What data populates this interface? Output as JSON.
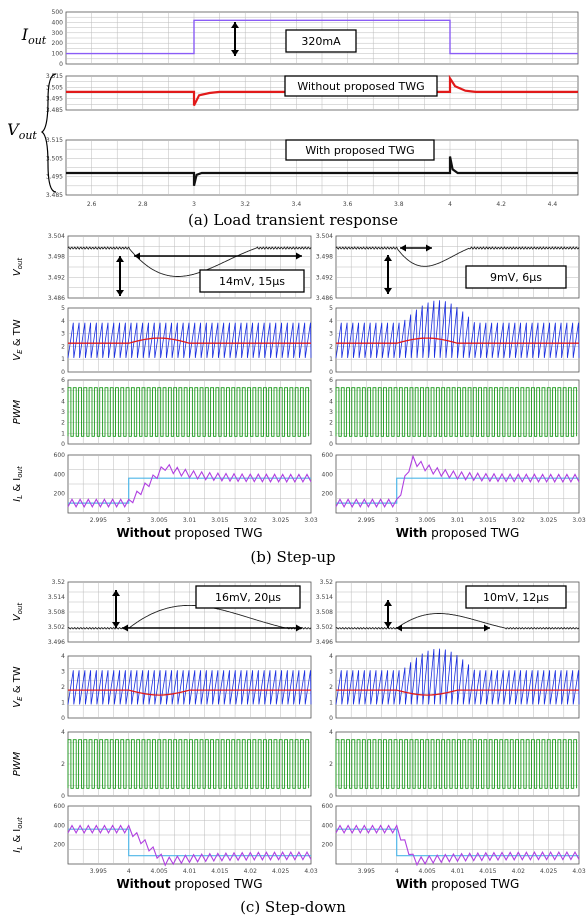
{
  "chart_data": [
    {
      "id": "a",
      "type": "line",
      "caption": "(a) Load transient response",
      "xlim": [
        2.5,
        4.5
      ],
      "xticks": [
        "2.6",
        "2.8",
        "3",
        "3.2",
        "3.4",
        "3.6",
        "3.8",
        "4",
        "4.2",
        "4.4"
      ],
      "panels": [
        {
          "ylabel": "I",
          "ylabel_sub": "out",
          "ylim": [
            0,
            500
          ],
          "yticks": [
            "500",
            "400",
            "300",
            "200",
            "100",
            "0"
          ],
          "series": [
            {
              "color": "#8a5cf6",
              "x": [
                2.5,
                3.0,
                3.0,
                4.0,
                4.0,
                4.5
              ],
              "y": [
                100,
                100,
                420,
                420,
                100,
                100
              ]
            }
          ]
        },
        {
          "ylabel": "",
          "ylim": [
            3.485,
            3.515
          ],
          "yticks": [
            "3.515",
            "3.505",
            "3.495",
            "3.485"
          ],
          "series": [
            {
              "color": "#e11a1a",
              "x": [
                2.5,
                2.998,
                3.0,
                3.0,
                3.02,
                3.06,
                3.1,
                3.999,
                4.0,
                4.0,
                4.02,
                4.06,
                4.1,
                4.5
              ],
              "y": [
                3.501,
                3.501,
                3.501,
                3.489,
                3.498,
                3.5,
                3.501,
                3.501,
                3.501,
                3.513,
                3.506,
                3.502,
                3.501,
                3.501
              ]
            }
          ]
        },
        {
          "ylabel": "",
          "ylim": [
            3.485,
            3.515
          ],
          "yticks": [
            "3.515",
            "3.505",
            "3.495",
            "3.485"
          ],
          "series": [
            {
              "color": "#111111",
              "x": [
                2.5,
                2.998,
                3.0,
                3.0,
                3.01,
                3.03,
                3.999,
                4.0,
                4.0,
                4.01,
                4.03,
                4.5
              ],
              "y": [
                3.497,
                3.497,
                3.497,
                3.49,
                3.496,
                3.497,
                3.497,
                3.497,
                3.506,
                3.499,
                3.497,
                3.497
              ]
            }
          ]
        }
      ],
      "group_label": "V",
      "group_label_sub": "out",
      "annotations": [
        "320mA",
        "Without proposed TWG",
        "With proposed TWG"
      ]
    },
    {
      "id": "b",
      "type": "line",
      "caption": "(b) Step-up",
      "columns": [
        {
          "xlabel_bold": "Without",
          "xlabel_rest": " proposed TWG",
          "note": "14mV, 15μs",
          "xlim": [
            2.99,
            3.03
          ],
          "xticks": [
            "2.995",
            "3",
            "3.005",
            "3.01",
            "3.015",
            "3.02",
            "3.025",
            "3.03"
          ],
          "vout": {
            "ylim": [
              3.486,
              3.504
            ],
            "yticks": [
              "3.504",
              "3.498",
              "3.492",
              "3.486"
            ],
            "dip_min": 3.4865,
            "dip_start": 3.0,
            "dip_recover": 3.015
          },
          "il": {
            "ylim": [
              0,
              700
            ],
            "yticks": [
              "600",
              "400",
              "200"
            ],
            "steady_low": 120,
            "steady_high": 420,
            "overshoot": 560
          }
        },
        {
          "xlabel_bold": "With",
          "xlabel_rest": " proposed TWG",
          "note": "9mV, 6μs",
          "xlim": [
            2.99,
            3.03
          ],
          "xticks": [
            "2.995",
            "3",
            "3.005",
            "3.01",
            "3.015",
            "3.02",
            "3.025",
            "3.03"
          ],
          "vout": {
            "ylim": [
              3.486,
              3.504
            ],
            "yticks": [
              "3.504",
              "3.498",
              "3.492",
              "3.486"
            ],
            "dip_min": 3.4915,
            "dip_start": 3.0,
            "dip_recover": 3.006
          },
          "il": {
            "ylim": [
              0,
              700
            ],
            "yticks": [
              "600",
              "400",
              "200"
            ],
            "steady_low": 120,
            "steady_high": 420,
            "overshoot": 650
          }
        }
      ],
      "row_labels": [
        {
          "main": "V",
          "sub": "out",
          "rest": ""
        },
        {
          "main": "V",
          "sub": "E",
          "rest": " & TW"
        },
        {
          "main": "PWM",
          "sub": "",
          "rest": ""
        },
        {
          "main": "I",
          "sub": "L",
          "rest": " & I",
          "sub2": "out"
        }
      ],
      "ve_yticks": [
        "5",
        "4",
        "3",
        "2",
        "1",
        "0"
      ],
      "pwm_yticks": [
        "6",
        "5",
        "4",
        "3",
        "2",
        "1",
        "0"
      ]
    },
    {
      "id": "c",
      "type": "line",
      "caption": "(c) Step-down",
      "columns": [
        {
          "xlabel_bold": "Without",
          "xlabel_rest": " proposed TWG",
          "note": "16mV, 20μs",
          "xlim": [
            3.99,
            4.03
          ],
          "xticks": [
            "3.995",
            "4",
            "4.005",
            "4.01",
            "4.015",
            "4.02",
            "4.025",
            "4.03"
          ],
          "vout": {
            "ylim": [
              3.496,
              3.52
            ],
            "yticks": [
              "3.52",
              "3.514",
              "3.508",
              "3.502",
              "3.496"
            ],
            "peak": 3.517,
            "dip_start": 4.0,
            "dip_recover": 4.02
          },
          "il": {
            "ylim": [
              0,
              700
            ],
            "yticks": [
              "600",
              "400",
              "200"
            ],
            "steady_low": 100,
            "steady_high": 420
          }
        },
        {
          "xlabel_bold": "With",
          "xlabel_rest": " proposed TWG",
          "note": "10mV, 12μs",
          "xlim": [
            3.99,
            4.03
          ],
          "xticks": [
            "3.995",
            "4",
            "4.005",
            "4.01",
            "4.015",
            "4.02",
            "4.025",
            "4.03"
          ],
          "vout": {
            "ylim": [
              3.496,
              3.52
            ],
            "yticks": [
              "3.52",
              "3.514",
              "3.508",
              "3.502",
              "3.496"
            ],
            "peak": 3.5115,
            "dip_start": 4.0,
            "dip_recover": 4.012
          },
          "il": {
            "ylim": [
              0,
              700
            ],
            "yticks": [
              "600",
              "400",
              "200"
            ],
            "steady_low": 100,
            "steady_high": 420
          }
        }
      ],
      "ve_yticks": [
        "4",
        "3",
        "2",
        "1",
        "0"
      ],
      "pwm_yticks": [
        "4",
        "2",
        "0"
      ]
    }
  ],
  "colors": {
    "iout": "#8a5cf6",
    "vout_without": "#e11a1a",
    "vout_with": "#111111",
    "sawtooth": "#1a2ee0",
    "ve": "#e11a1a",
    "pwm": "#1a9a1a",
    "il": "#b040e0",
    "iout_step": "#4fb6e8",
    "grid": "#bbbbbb"
  }
}
